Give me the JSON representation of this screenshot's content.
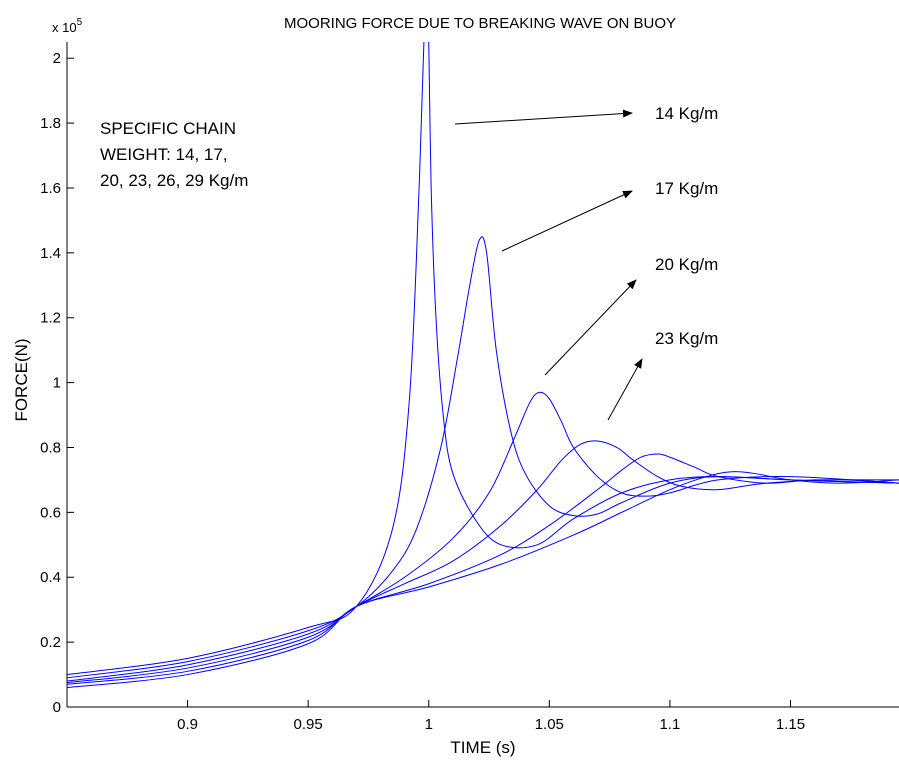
{
  "chart_data": {
    "type": "line",
    "title": "MOORING FORCE DUE TO BREAKING WAVE ON BUOY",
    "xlabel": "TIME (s)",
    "ylabel": "FORCE(N)",
    "y_exponent_label": "x 10",
    "y_exponent_power": "5",
    "xlim": [
      0.85,
      1.195
    ],
    "ylim": [
      0,
      2.05
    ],
    "x_ticks": [
      0.9,
      0.95,
      1.0,
      1.05,
      1.1,
      1.15
    ],
    "x_tick_labels": [
      "0.9",
      "0.95",
      "1",
      "1.05",
      "1.1",
      "1.15"
    ],
    "y_ticks": [
      0,
      0.2,
      0.4,
      0.6,
      0.8,
      1.0,
      1.2,
      1.4,
      1.6,
      1.8,
      2.0
    ],
    "y_tick_labels": [
      "0",
      "0.2",
      "0.4",
      "0.6",
      "0.8",
      "1",
      "1.2",
      "1.4",
      "1.6",
      "1.8",
      "2"
    ],
    "grid": false,
    "line_color": "#0000ff",
    "series": [
      {
        "x": [
          0.85,
          0.9,
          0.95,
          0.97,
          0.985,
          0.992,
          0.996,
          0.998,
          0.999,
          1.0,
          1.001,
          1.003,
          1.006,
          1.01,
          1.02,
          1.03,
          1.045,
          1.06,
          1.08,
          1.1,
          1.12,
          1.15,
          1.195
        ],
        "y": [
          0.1,
          0.15,
          0.245,
          0.31,
          0.55,
          0.95,
          1.6,
          2.05,
          2.05,
          2.05,
          1.6,
          1.2,
          0.9,
          0.72,
          0.57,
          0.5,
          0.5,
          0.58,
          0.66,
          0.7,
          0.71,
          0.7,
          0.69
        ]
      },
      {
        "x": [
          0.85,
          0.9,
          0.95,
          0.97,
          0.985,
          0.995,
          1.005,
          1.012,
          1.017,
          1.021,
          1.024,
          1.028,
          1.034,
          1.04,
          1.05,
          1.06,
          1.07,
          1.08,
          1.1,
          1.12,
          1.15,
          1.195
        ],
        "y": [
          0.09,
          0.14,
          0.235,
          0.31,
          0.42,
          0.55,
          0.8,
          1.08,
          1.3,
          1.44,
          1.4,
          1.1,
          0.85,
          0.72,
          0.62,
          0.59,
          0.595,
          0.63,
          0.69,
          0.71,
          0.7,
          0.69
        ]
      },
      {
        "x": [
          0.85,
          0.9,
          0.95,
          0.97,
          0.99,
          1.01,
          1.025,
          1.035,
          1.042,
          1.046,
          1.05,
          1.055,
          1.06,
          1.07,
          1.08,
          1.09,
          1.1,
          1.12,
          1.15,
          1.195
        ],
        "y": [
          0.08,
          0.13,
          0.225,
          0.31,
          0.4,
          0.52,
          0.66,
          0.82,
          0.94,
          0.97,
          0.95,
          0.88,
          0.8,
          0.71,
          0.66,
          0.65,
          0.66,
          0.7,
          0.71,
          0.69
        ]
      },
      {
        "x": [
          0.85,
          0.9,
          0.95,
          0.97,
          0.99,
          1.01,
          1.03,
          1.045,
          1.055,
          1.063,
          1.07,
          1.078,
          1.085,
          1.095,
          1.105,
          1.12,
          1.14,
          1.17,
          1.195
        ],
        "y": [
          0.075,
          0.12,
          0.215,
          0.31,
          0.38,
          0.45,
          0.56,
          0.67,
          0.76,
          0.81,
          0.82,
          0.8,
          0.76,
          0.71,
          0.68,
          0.67,
          0.69,
          0.7,
          0.69
        ]
      },
      {
        "x": [
          0.85,
          0.9,
          0.95,
          0.97,
          1.0,
          1.03,
          1.05,
          1.07,
          1.08,
          1.088,
          1.095,
          1.1,
          1.11,
          1.12,
          1.14,
          1.16,
          1.195
        ],
        "y": [
          0.07,
          0.11,
          0.205,
          0.31,
          0.38,
          0.47,
          0.56,
          0.67,
          0.73,
          0.77,
          0.78,
          0.77,
          0.74,
          0.71,
          0.69,
          0.7,
          0.7
        ]
      },
      {
        "x": [
          0.85,
          0.9,
          0.95,
          0.97,
          1.0,
          1.03,
          1.06,
          1.08,
          1.1,
          1.115,
          1.125,
          1.135,
          1.15,
          1.17,
          1.195
        ],
        "y": [
          0.06,
          0.1,
          0.195,
          0.31,
          0.37,
          0.44,
          0.53,
          0.6,
          0.67,
          0.71,
          0.725,
          0.72,
          0.7,
          0.69,
          0.7
        ]
      }
    ],
    "annotations": [
      {
        "id": "specific-chain",
        "lines": [
          "SPECIFIC CHAIN",
          "WEIGHT: 14, 17,",
          "20, 23, 26, 29 Kg/m"
        ]
      },
      {
        "id": "label-14",
        "text": "14 Kg/m"
      },
      {
        "id": "label-17",
        "text": "17 Kg/m"
      },
      {
        "id": "label-20",
        "text": "20 Kg/m"
      },
      {
        "id": "label-23",
        "text": "23 Kg/m"
      }
    ]
  }
}
